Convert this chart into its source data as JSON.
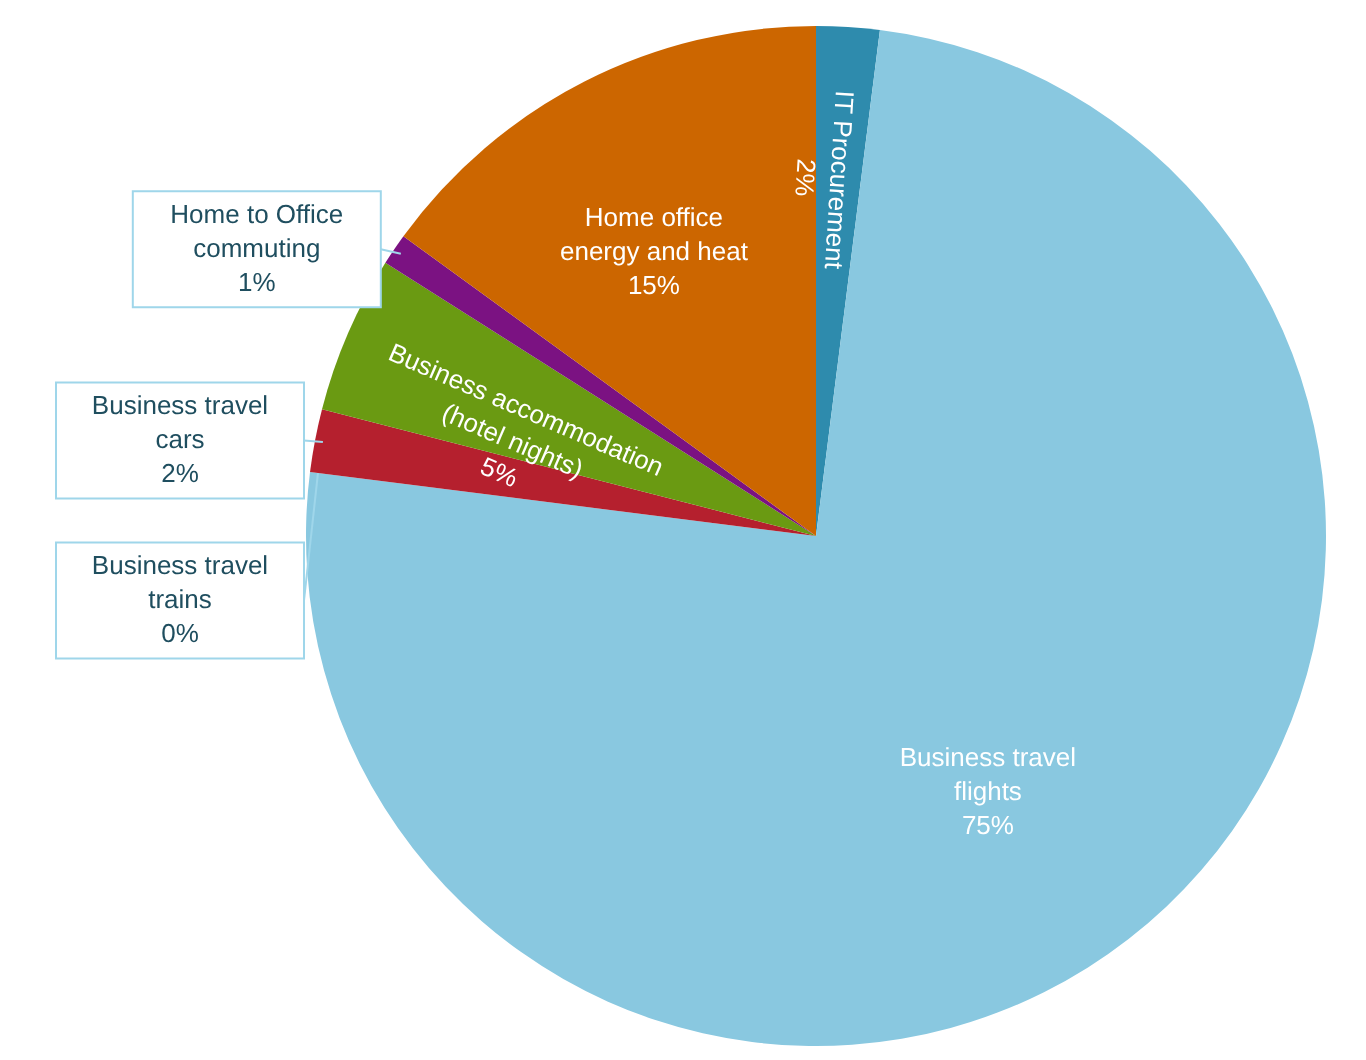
{
  "chart_data": {
    "type": "pie",
    "categories": [
      "IT Procurement",
      "Business travel flights",
      "Business travel trains",
      "Business travel cars",
      "Business accommodation (hotel nights)",
      "Home to Office commuting",
      "Home office energy and heat"
    ],
    "values": [
      2,
      75,
      0,
      2,
      5,
      1,
      15
    ],
    "value_labels": [
      "2%",
      "75%",
      "0%",
      "2%",
      "5%",
      "1%",
      "15%"
    ],
    "colors": [
      "#2e8bad",
      "#89c8e0",
      "#e8b33a",
      "#b5202e",
      "#6a9a12",
      "#7b1282",
      "#cc6600"
    ]
  }
}
